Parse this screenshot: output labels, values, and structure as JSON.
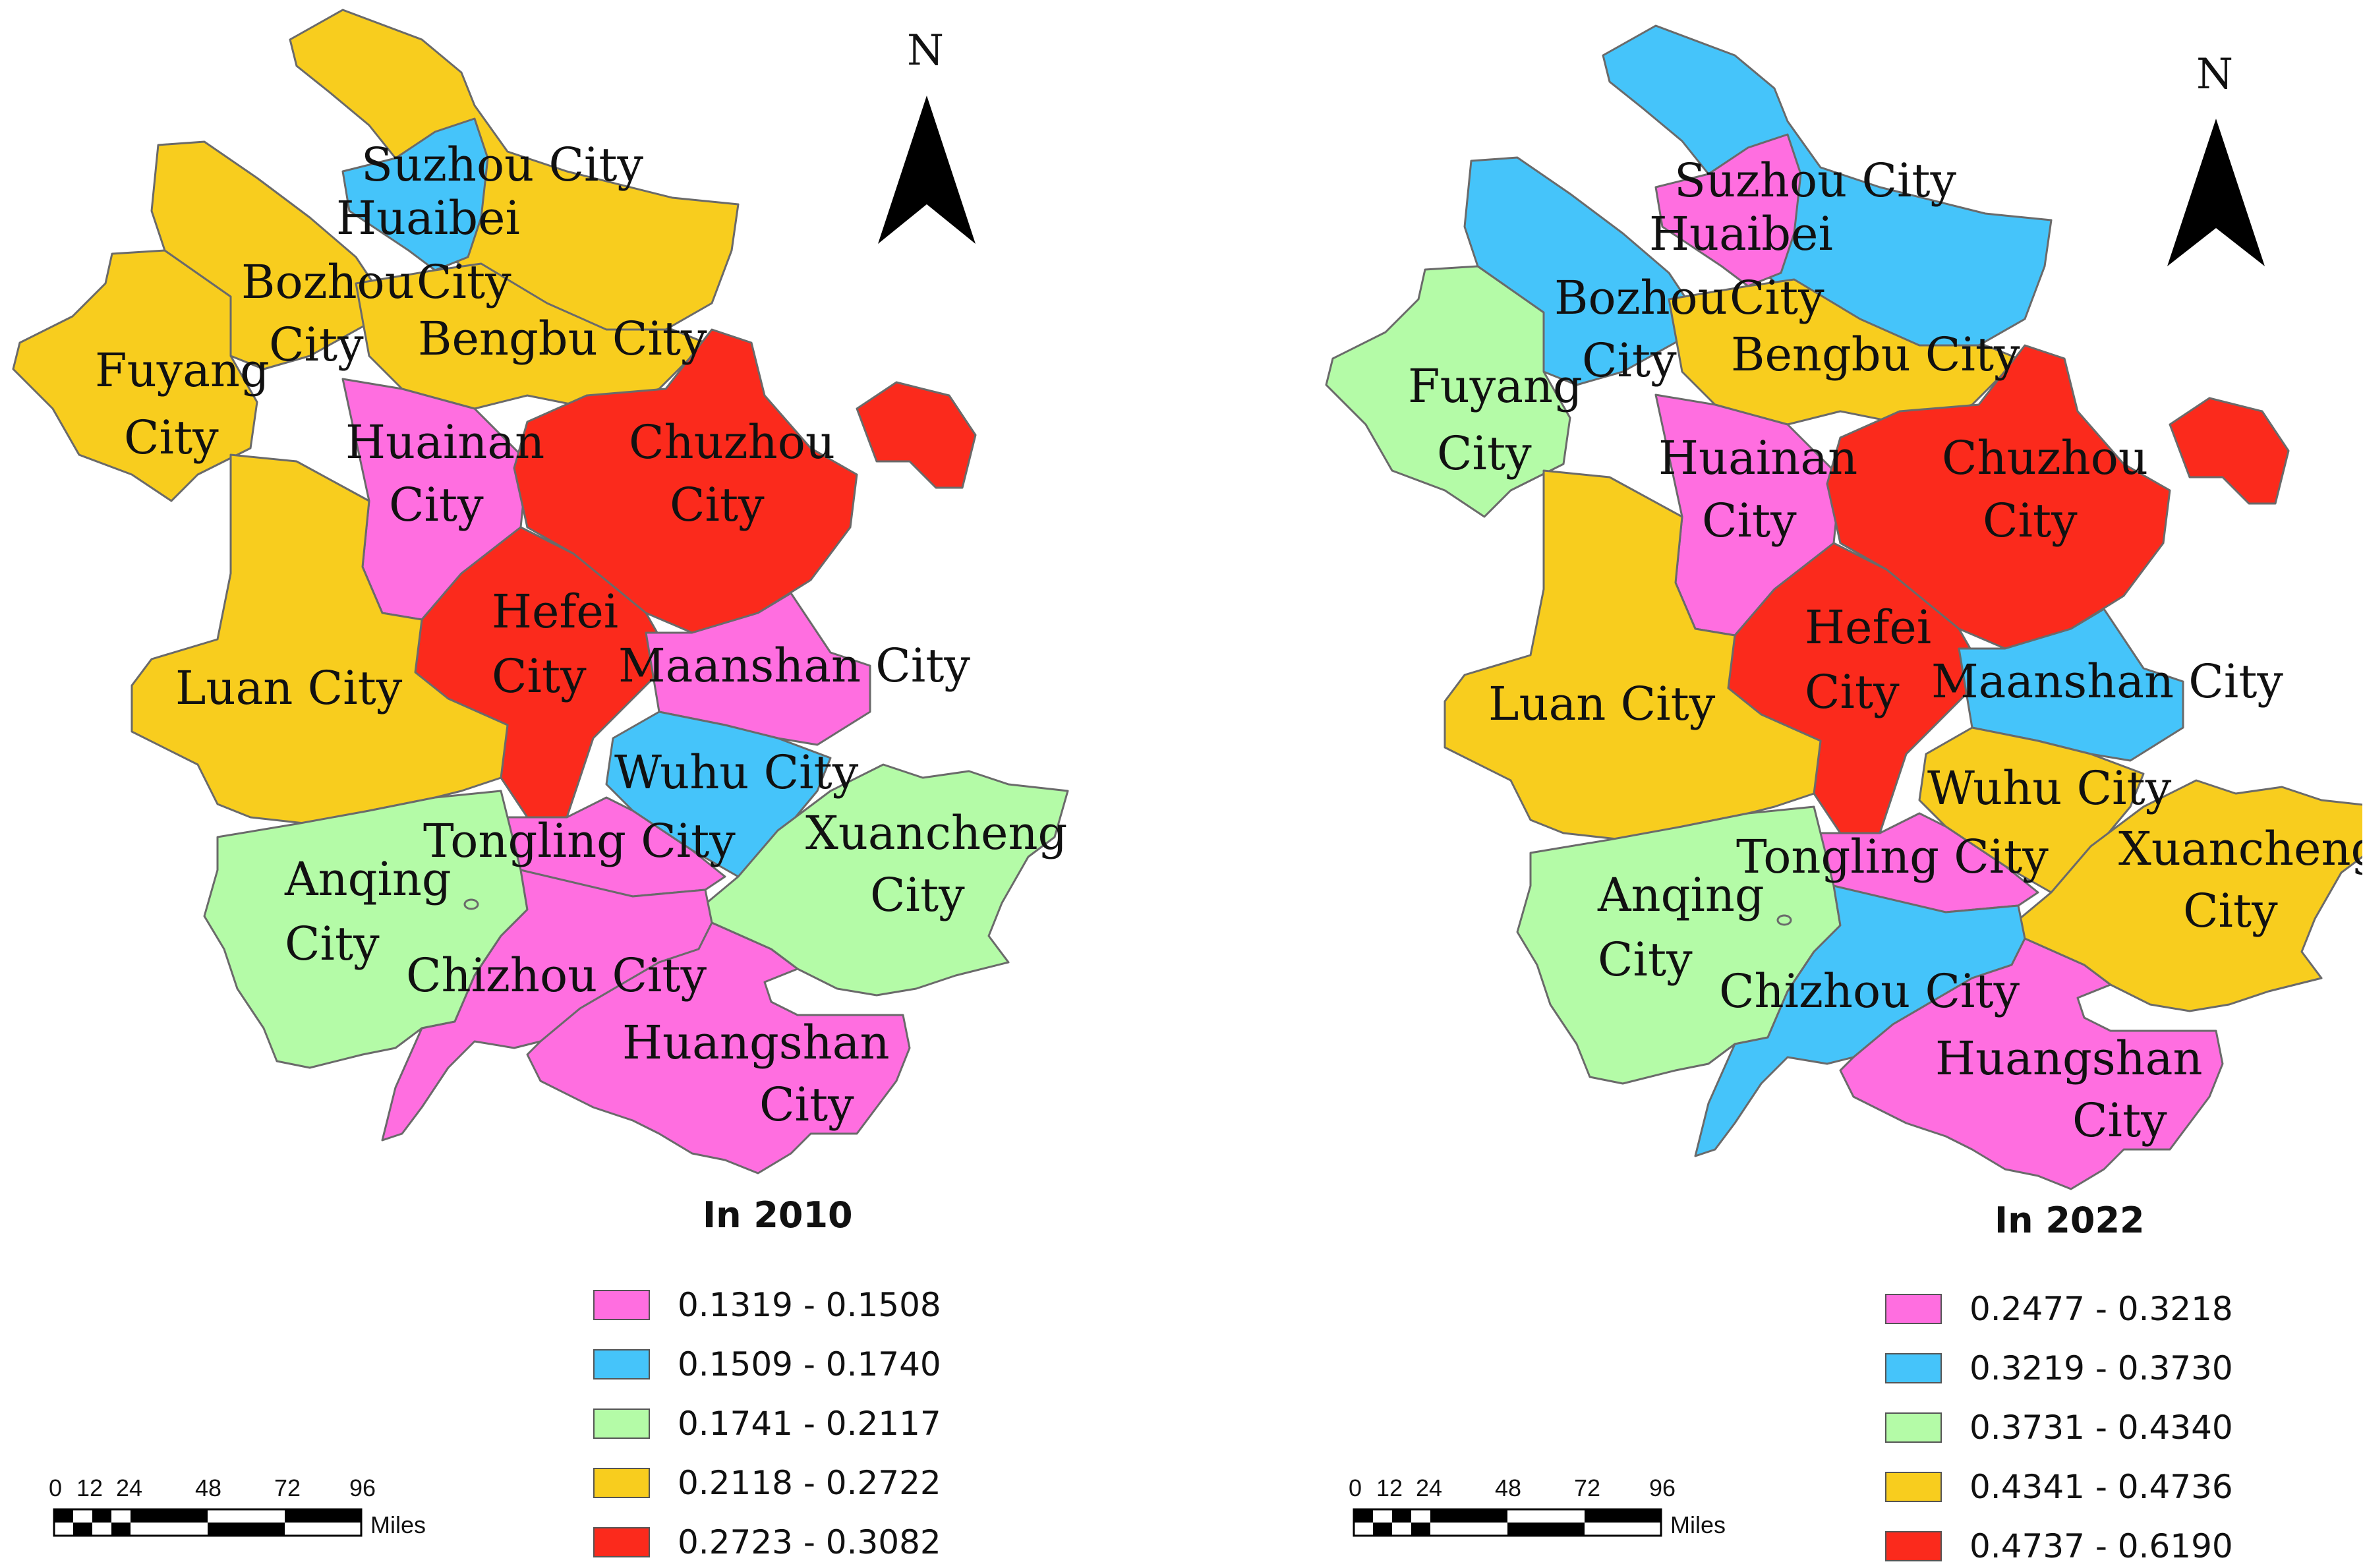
{
  "colors": {
    "class1": "#ff6ee0",
    "class2": "#45c4fa",
    "class3": "#b4fba7",
    "class4": "#f8cd1e",
    "class5": "#fb2a1c"
  },
  "north": "N",
  "scale_bar": {
    "ticks": [
      "0",
      "12",
      "24",
      "48",
      "72",
      "96"
    ],
    "unit": "Miles"
  },
  "maps": [
    {
      "title": "In 2010",
      "labels": {
        "suzhou": "Suzhou City",
        "huaibei_1": "Huaibei",
        "huaibei_2": "City",
        "bozhou_1": "Bozhou",
        "bozhou_2": "City",
        "bengbu": "Bengbu City",
        "fuyang_1": "Fuyang",
        "fuyang_2": "City",
        "huainan_1": "Huainan",
        "huainan_2": "City",
        "chuzhou_1": "Chuzhou",
        "chuzhou_2": "City",
        "hefei_1": "Hefei",
        "hefei_2": "City",
        "maanshan": "Maanshan City",
        "luan": "Luan City",
        "wuhu": "Wuhu City",
        "tongling": "Tongling City",
        "xuancheng_1": "Xuancheng",
        "xuancheng_2": "City",
        "anqing_1": "Anqing",
        "anqing_2": "City",
        "chizhou": "Chizhou City",
        "huangshan_1": "Huangshan",
        "huangshan_2": "City"
      },
      "legend": [
        "0.1319 - 0.1508",
        "0.1509 - 0.1740",
        "0.1741 - 0.2117",
        "0.2118 - 0.2722",
        "0.2723 - 0.3082"
      ],
      "classes": {
        "suzhou": 4,
        "huaibei": 2,
        "bozhou": 4,
        "bengbu": 4,
        "fuyang": 4,
        "huainan": 1,
        "chuzhou": 5,
        "hefei": 5,
        "maanshan": 1,
        "luan": 4,
        "wuhu": 2,
        "tongling": 1,
        "xuancheng": 3,
        "anqing": 3,
        "chizhou": 1,
        "huangshan": 1
      }
    },
    {
      "title": "In 2022",
      "labels": {
        "suzhou": "Suzhou City",
        "huaibei_1": "Huaibei",
        "huaibei_2": "City",
        "bozhou_1": "Bozhou",
        "bozhou_2": "City",
        "bengbu": "Bengbu City",
        "fuyang_1": "Fuyang",
        "fuyang_2": "City",
        "huainan_1": "Huainan",
        "huainan_2": "City",
        "chuzhou_1": "Chuzhou",
        "chuzhou_2": "City",
        "hefei_1": "Hefei",
        "hefei_2": "City",
        "maanshan": "Maanshan City",
        "luan": "Luan City",
        "wuhu": "Wuhu City",
        "tongling": "Tongling City",
        "xuancheng_1": "Xuancheng",
        "xuancheng_2": "City",
        "anqing_1": "Anqing",
        "anqing_2": "City",
        "chizhou": "Chizhou City",
        "huangshan_1": "Huangshan",
        "huangshan_2": "City"
      },
      "legend": [
        "0.2477 - 0.3218",
        "0.3219 - 0.3730",
        "0.3731 - 0.4340",
        "0.4341 - 0.4736",
        "0.4737 - 0.6190"
      ],
      "classes": {
        "suzhou": 2,
        "huaibei": 1,
        "bozhou": 2,
        "bengbu": 4,
        "fuyang": 3,
        "huainan": 1,
        "chuzhou": 5,
        "hefei": 5,
        "maanshan": 2,
        "luan": 4,
        "wuhu": 4,
        "tongling": 1,
        "xuancheng": 4,
        "anqing": 3,
        "chizhou": 2,
        "huangshan": 1
      }
    }
  ]
}
